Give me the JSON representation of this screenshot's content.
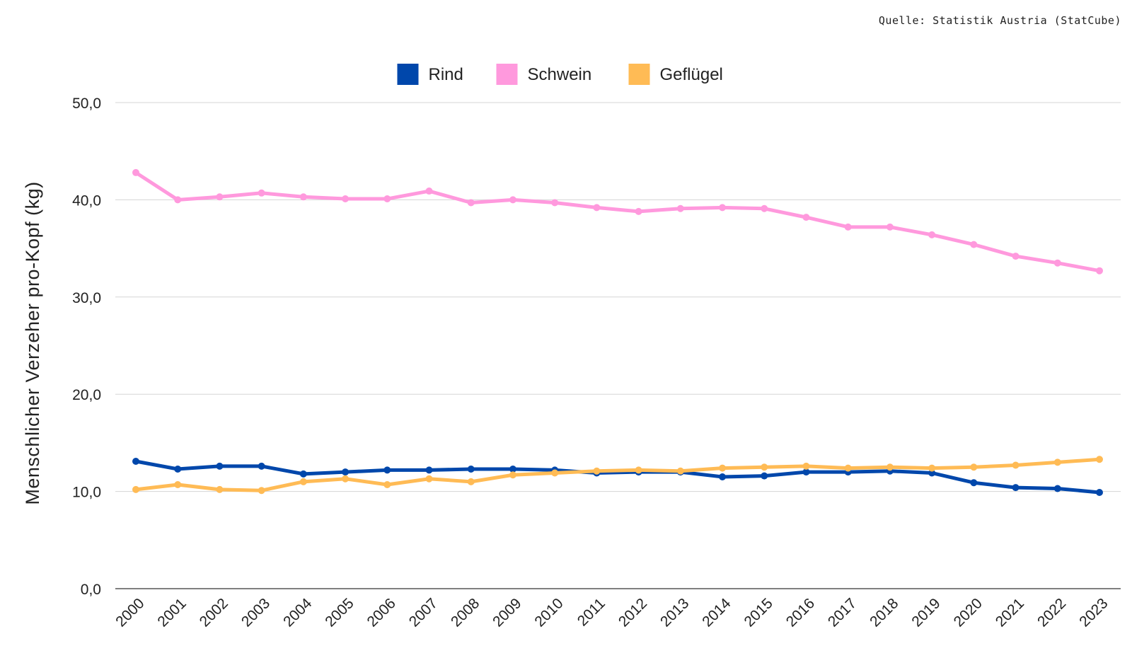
{
  "source_note": "Quelle: Statistik Austria (StatCube)",
  "chart_data": {
    "type": "line",
    "title": "",
    "xlabel": "",
    "ylabel": "Menschlicher Verzeher pro-Kopf (kg)",
    "x": [
      "2000",
      "2001",
      "2002",
      "2003",
      "2004",
      "2005",
      "2006",
      "2007",
      "2008",
      "2009",
      "2010",
      "2011",
      "2012",
      "2013",
      "2014",
      "2015",
      "2016",
      "2017",
      "2018",
      "2019",
      "2020",
      "2021",
      "2022",
      "2023"
    ],
    "ylim": [
      0,
      50
    ],
    "yticks": [
      0,
      10,
      20,
      30,
      40,
      50
    ],
    "ytick_labels": [
      "0,0",
      "10,0",
      "20,0",
      "30,0",
      "40,0",
      "50,0"
    ],
    "grid": true,
    "legend_position": "top-center",
    "series": [
      {
        "name": "Rind",
        "color": "#0047AB",
        "values": [
          13.1,
          12.3,
          12.6,
          12.6,
          11.8,
          12.0,
          12.2,
          12.2,
          12.3,
          12.3,
          12.2,
          11.9,
          12.0,
          12.0,
          11.5,
          11.6,
          12.0,
          12.0,
          12.1,
          11.9,
          10.9,
          10.4,
          10.3,
          9.9
        ]
      },
      {
        "name": "Schwein",
        "color": "#FF99DD",
        "values": [
          42.8,
          40.0,
          40.3,
          40.7,
          40.3,
          40.1,
          40.1,
          40.9,
          39.7,
          40.0,
          39.7,
          39.2,
          38.8,
          39.1,
          39.2,
          39.1,
          38.2,
          37.2,
          37.2,
          36.4,
          35.4,
          34.2,
          33.5,
          32.7
        ]
      },
      {
        "name": "Geflügel",
        "color": "#FFBB55",
        "values": [
          10.2,
          10.7,
          10.2,
          10.1,
          11.0,
          11.3,
          10.7,
          11.3,
          11.0,
          11.7,
          11.9,
          12.1,
          12.2,
          12.1,
          12.4,
          12.5,
          12.6,
          12.4,
          12.5,
          12.4,
          12.5,
          12.7,
          13.0,
          13.3
        ]
      }
    ]
  }
}
